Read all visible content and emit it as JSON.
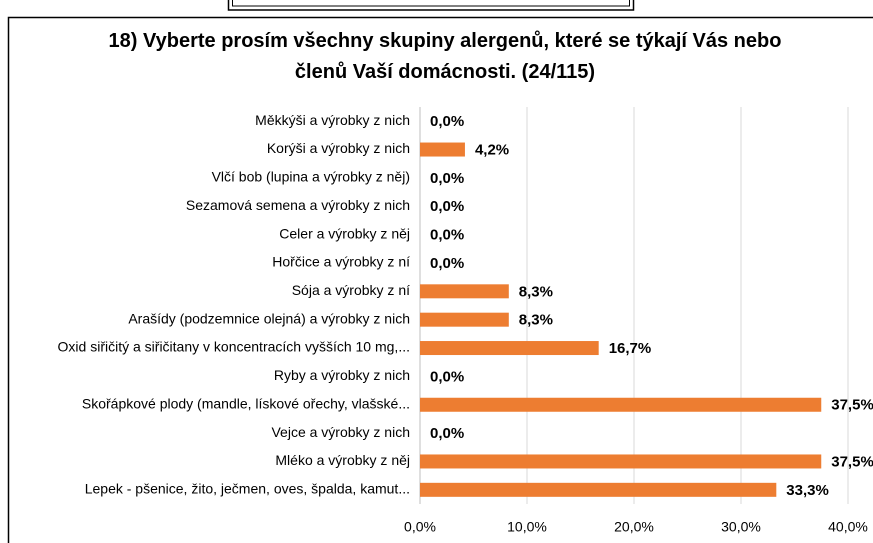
{
  "chart_data": {
    "type": "barh",
    "title": "18) Vyberte prosím všechny skupiny alergenů, které se týkají Vás nebo členů Vaší domácnosti. (24/115)",
    "categories": [
      "Měkkýši a výrobky z nich",
      "Korýši a výrobky z nich",
      "Vlčí bob (lupina a výrobky z něj)",
      "Sezamová semena a výrobky z nich",
      "Celer a výrobky z něj",
      "Hořčice a výrobky z ní",
      "Sója a výrobky z ní",
      "Arašídy (podzemnice olejná) a výrobky z nich",
      "Oxid siřičitý a siřičitany v koncentracích vyšších 10 mg,...",
      "Ryby a výrobky z nich",
      "Skořápkové plody (mandle, lískové ořechy, vlašské...",
      "Vejce a výrobky z nich",
      "Mléko a výrobky z něj",
      "Lepek - pšenice, žito, ječmen, oves, špalda, kamut..."
    ],
    "values": [
      0,
      4.2,
      0,
      0,
      0,
      0,
      8.3,
      8.3,
      16.7,
      0,
      37.5,
      0,
      37.5,
      33.3
    ],
    "value_labels": [
      "0,0%",
      "4,2%",
      "0,0%",
      "0,0%",
      "0,0%",
      "0,0%",
      "8,3%",
      "8,3%",
      "16,7%",
      "0,0%",
      "37,5%",
      "0,0%",
      "37,5%",
      "33,3%"
    ],
    "color": "#ed7d31",
    "xlim": [
      0,
      40
    ],
    "xticks": [
      {
        "value": 0,
        "label": "0,0%"
      },
      {
        "value": 10,
        "label": "10,0%"
      },
      {
        "value": 20,
        "label": "20,0%"
      },
      {
        "value": 30,
        "label": "30,0%"
      },
      {
        "value": 40,
        "label": "40,0%"
      }
    ],
    "grid": true
  }
}
